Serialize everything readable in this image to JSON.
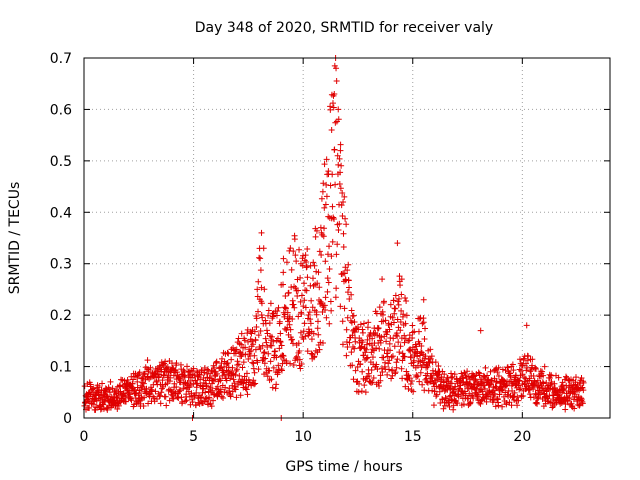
{
  "chart_data": {
    "type": "scatter",
    "title": "Day 348 of 2020, SRMTID for receiver valy",
    "xlabel": "GPS time / hours",
    "ylabel": "SRMTID / TECUs",
    "xlim": [
      0,
      24
    ],
    "ylim": [
      0,
      0.7
    ],
    "x_ticks": [
      0,
      5,
      10,
      15,
      20
    ],
    "y_ticks": [
      0,
      0.1,
      0.2,
      0.3,
      0.4,
      0.5,
      0.6,
      0.7
    ],
    "x_tick_labels": [
      "0",
      "5",
      "10",
      "15",
      "20"
    ],
    "y_tick_labels": [
      "0",
      "0.1",
      "0.2",
      "0.3",
      "0.4",
      "0.5",
      "0.6",
      "0.7"
    ],
    "grid": true,
    "marker": "+",
    "color": "#e00000",
    "series": [
      {
        "name": "SRMTID",
        "profile": [
          [
            0.0,
            0.04
          ],
          [
            1.0,
            0.04
          ],
          [
            2.0,
            0.05
          ],
          [
            3.0,
            0.07
          ],
          [
            4.0,
            0.07
          ],
          [
            4.9,
            0.06
          ],
          [
            5.2,
            0.06
          ],
          [
            6.0,
            0.07
          ],
          [
            7.0,
            0.1
          ],
          [
            7.8,
            0.12
          ],
          [
            8.0,
            0.22
          ],
          [
            8.3,
            0.15
          ],
          [
            8.7,
            0.13
          ],
          [
            9.2,
            0.2
          ],
          [
            9.6,
            0.23
          ],
          [
            10.0,
            0.22
          ],
          [
            10.4,
            0.21
          ],
          [
            10.8,
            0.28
          ],
          [
            11.2,
            0.38
          ],
          [
            11.5,
            0.48
          ],
          [
            11.8,
            0.3
          ],
          [
            12.1,
            0.2
          ],
          [
            12.5,
            0.12
          ],
          [
            13.0,
            0.12
          ],
          [
            13.5,
            0.15
          ],
          [
            14.0,
            0.15
          ],
          [
            14.4,
            0.19
          ],
          [
            14.8,
            0.13
          ],
          [
            15.2,
            0.12
          ],
          [
            15.6,
            0.13
          ],
          [
            16.0,
            0.07
          ],
          [
            16.5,
            0.05
          ],
          [
            17.5,
            0.06
          ],
          [
            18.5,
            0.06
          ],
          [
            19.5,
            0.06
          ],
          [
            20.2,
            0.08
          ],
          [
            21.0,
            0.06
          ],
          [
            22.0,
            0.05
          ],
          [
            22.8,
            0.05
          ]
        ],
        "peaks": [
          [
            8.1,
            0.36
          ],
          [
            8.2,
            0.33
          ],
          [
            9.1,
            0.31
          ],
          [
            9.9,
            0.3
          ],
          [
            10.9,
            0.44
          ],
          [
            11.15,
            0.48
          ],
          [
            11.3,
            0.56
          ],
          [
            11.42,
            0.63
          ],
          [
            11.5,
            0.68
          ],
          [
            11.6,
            0.6
          ],
          [
            11.7,
            0.52
          ],
          [
            11.82,
            0.42
          ],
          [
            13.6,
            0.27
          ],
          [
            14.3,
            0.34
          ],
          [
            14.5,
            0.27
          ],
          [
            15.5,
            0.23
          ],
          [
            18.1,
            0.17
          ],
          [
            20.2,
            0.18
          ],
          [
            4.95,
            0.0
          ],
          [
            9.0,
            0.0
          ]
        ]
      }
    ]
  }
}
